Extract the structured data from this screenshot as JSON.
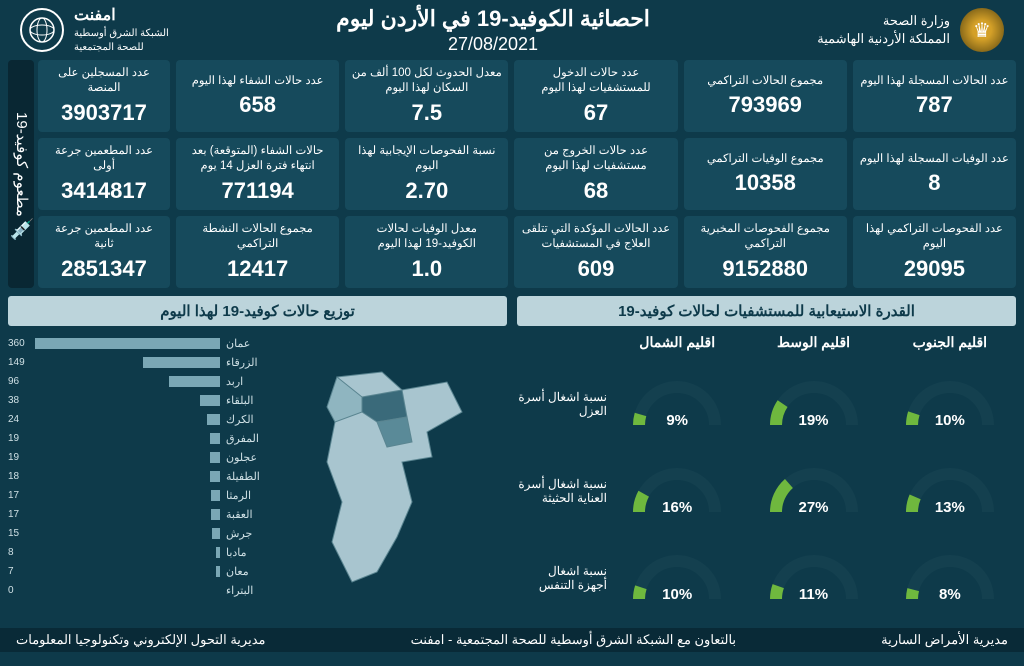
{
  "header": {
    "ministry_line1": "وزارة الصحة",
    "ministry_line2": "المملكة الأردنية الهاشمية",
    "title": "احصائية الكوفيد-19 في الأردن ليوم",
    "date": "27/08/2021",
    "network_line1": "امفنت",
    "network_line2": "الشبكة الشرق أوسطية",
    "network_line3": "للصحة المجتمعية"
  },
  "vaccine": {
    "sidebar_label": "مطعوم كوفيد-19",
    "boxes": [
      {
        "label": "عدد المسجلين على المنصة",
        "value": "3903717"
      },
      {
        "label": "عدد المطعمين جرعة أولى",
        "value": "3414817"
      },
      {
        "label": "عدد المطعمين جرعة ثانية",
        "value": "2851347"
      }
    ]
  },
  "stats": [
    {
      "label": "عدد الحالات المسجلة لهذا اليوم",
      "value": "787"
    },
    {
      "label": "مجموع الحالات التراكمي",
      "value": "793969"
    },
    {
      "label": "عدد حالات الدخول للمستشفيات لهذا اليوم",
      "value": "67"
    },
    {
      "label": "معدل الحدوث لكل 100 ألف من السكان لهذا اليوم",
      "value": "7.5"
    },
    {
      "label": "عدد حالات الشفاء لهذا اليوم",
      "value": "658"
    },
    {
      "label": "عدد الوفيات المسجلة لهذا اليوم",
      "value": "8"
    },
    {
      "label": "مجموع الوفيات التراكمي",
      "value": "10358"
    },
    {
      "label": "عدد حالات الخروج من مستشفيات لهذا اليوم",
      "value": "68"
    },
    {
      "label": "نسبة الفحوصات الإيجابية لهذا اليوم",
      "value": "2.70"
    },
    {
      "label": "حالات الشفاء (المتوقعة) بعد انتهاء فترة العزل 14 يوم",
      "value": "771194"
    },
    {
      "label": "عدد الفحوصات التراكمي لهذا اليوم",
      "value": "29095"
    },
    {
      "label": "مجموع الفحوصات المخبرية التراكمي",
      "value": "9152880"
    },
    {
      "label": "عدد الحالات المؤكدة التي تتلقى العلاج في المستشفيات",
      "value": "609"
    },
    {
      "label": "معدل الوفيات لحالات الكوفيد-19 لهذا اليوم",
      "value": "1.0"
    },
    {
      "label": "مجموع الحالات النشطة التراكمي",
      "value": "12417"
    }
  ],
  "capacity": {
    "title": "القدرة الاستيعابية للمستشفيات لحالات كوفيد-19",
    "regions": [
      "اقليم الشمال",
      "اقليم الوسط",
      "اقليم الجنوب"
    ],
    "rows": [
      {
        "label": "نسبة اشغال أسرة العزل",
        "values": [
          9,
          19,
          10
        ]
      },
      {
        "label": "نسبة اشغال أسرة العناية الحثيثة",
        "values": [
          16,
          27,
          13
        ]
      },
      {
        "label": "نسبة اشغال أجهزة التنفس",
        "values": [
          10,
          11,
          8
        ]
      }
    ],
    "gauge_bg": "#14404f",
    "gauge_fg": "#6fb83e"
  },
  "distribution": {
    "title": "توزيع حالات كوفيد-19 لهذا اليوم",
    "max": 360,
    "bar_color": "#7aa7b5",
    "items": [
      {
        "name": "عمان",
        "value": 360
      },
      {
        "name": "الزرقاء",
        "value": 149
      },
      {
        "name": "اربد",
        "value": 96
      },
      {
        "name": "البلقاء",
        "value": 38
      },
      {
        "name": "الكرك",
        "value": 24
      },
      {
        "name": "المفرق",
        "value": 19
      },
      {
        "name": "عجلون",
        "value": 19
      },
      {
        "name": "الطفيلة",
        "value": 18
      },
      {
        "name": "الرمثا",
        "value": 17
      },
      {
        "name": "العقبة",
        "value": 17
      },
      {
        "name": "جرش",
        "value": 15
      },
      {
        "name": "مادبا",
        "value": 8
      },
      {
        "name": "معان",
        "value": 7
      },
      {
        "name": "البتراء",
        "value": 0
      }
    ]
  },
  "footer": {
    "right": "مديرية الأمراض السارية",
    "center": "بالتعاون مع الشبكة الشرق أوسطية للصحة المجتمعية - امفنت",
    "left": "مديرية التحول الإلكتروني وتكنولوجيا المعلومات"
  }
}
